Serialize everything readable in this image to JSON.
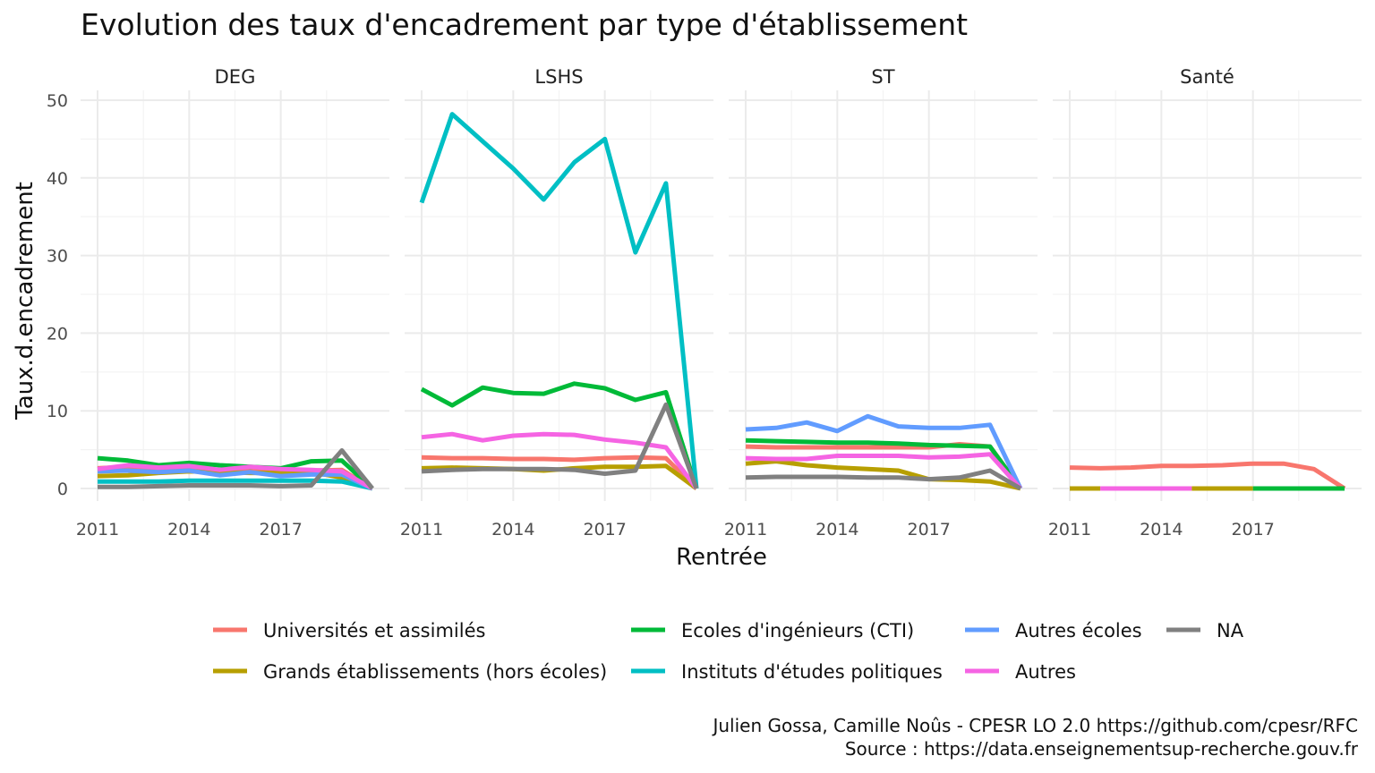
{
  "chart_data": {
    "type": "line",
    "title": "Evolution des taux d'encadrement par type d'établissement",
    "xlabel": "Rentrée",
    "ylabel": "Taux.d.encadrement",
    "x": [
      2011,
      2012,
      2013,
      2014,
      2015,
      2016,
      2017,
      2018,
      2019,
      2020
    ],
    "x_ticks": [
      "2011",
      "2014",
      "2017"
    ],
    "y_ticks": [
      "0",
      "10",
      "20",
      "30",
      "40",
      "50"
    ],
    "xlim": [
      2011,
      2020
    ],
    "ylim": [
      0,
      50
    ],
    "grid": true,
    "legend_position": "bottom",
    "legend": [
      {
        "name": "Universités et assimilés",
        "color": "#F8766D"
      },
      {
        "name": "Grands établissements (hors écoles)",
        "color": "#B79F00"
      },
      {
        "name": "Ecoles d'ingénieurs (CTI)",
        "color": "#00BA38"
      },
      {
        "name": "Instituts d'études politiques",
        "color": "#00BFC4"
      },
      {
        "name": "Autres écoles",
        "color": "#619CFF"
      },
      {
        "name": "Autres",
        "color": "#F564E3"
      },
      {
        "name": "NA",
        "color": "#808080"
      }
    ],
    "panels": [
      {
        "name": "DEG",
        "series": [
          {
            "name": "Universités et assimilés",
            "values": [
              2.6,
              2.8,
              2.5,
              2.4,
              2.2,
              2.3,
              2.4,
              2.3,
              2.4,
              0
            ]
          },
          {
            "name": "Grands établissements (hors écoles)",
            "values": [
              1.6,
              1.7,
              2.0,
              2.2,
              2.1,
              2.0,
              2.0,
              2.1,
              1.4,
              0
            ]
          },
          {
            "name": "Ecoles d'ingénieurs (CTI)",
            "values": [
              3.9,
              3.6,
              3.0,
              3.3,
              3.0,
              2.8,
              2.6,
              3.5,
              3.6,
              0
            ]
          },
          {
            "name": "Instituts d'études politiques",
            "values": [
              0.9,
              0.9,
              0.9,
              1.0,
              1.0,
              1.0,
              1.0,
              1.0,
              0.9,
              0
            ]
          },
          {
            "name": "Autres écoles",
            "values": [
              2.2,
              2.3,
              2.1,
              2.3,
              1.7,
              2.1,
              1.6,
              1.8,
              1.8,
              0
            ]
          },
          {
            "name": "Autres",
            "values": [
              2.5,
              3.0,
              2.7,
              2.9,
              2.4,
              2.8,
              2.5,
              2.4,
              2.2,
              0
            ]
          },
          {
            "name": "NA",
            "values": [
              0.2,
              0.2,
              0.3,
              0.4,
              0.4,
              0.4,
              0.3,
              0.4,
              4.9,
              0
            ]
          }
        ]
      },
      {
        "name": "LSHS",
        "series": [
          {
            "name": "Universités et assimilés",
            "values": [
              4.0,
              3.9,
              3.9,
              3.8,
              3.8,
              3.7,
              3.9,
              4.0,
              3.9,
              0
            ]
          },
          {
            "name": "Grands établissements (hors écoles)",
            "values": [
              2.6,
              2.7,
              2.6,
              2.5,
              2.3,
              2.6,
              2.8,
              2.8,
              2.9,
              0
            ]
          },
          {
            "name": "Ecoles d'ingénieurs (CTI)",
            "values": [
              12.8,
              10.7,
              13.0,
              12.3,
              12.2,
              13.5,
              12.9,
              11.4,
              12.4,
              0
            ]
          },
          {
            "name": "Instituts d'études politiques",
            "values": [
              36.8,
              48.2,
              44.7,
              41.2,
              37.2,
              42.0,
              45.0,
              30.4,
              39.3,
              0
            ]
          },
          {
            "name": "Autres",
            "values": [
              6.6,
              7.0,
              6.2,
              6.8,
              7.0,
              6.9,
              6.3,
              5.9,
              5.3,
              0
            ]
          },
          {
            "name": "NA",
            "values": [
              2.2,
              2.4,
              2.5,
              2.5,
              2.5,
              2.4,
              1.9,
              2.3,
              10.8,
              0
            ]
          }
        ]
      },
      {
        "name": "ST",
        "series": [
          {
            "name": "Universités et assimilés",
            "values": [
              5.4,
              5.3,
              5.3,
              5.3,
              5.3,
              5.3,
              5.3,
              5.7,
              5.4,
              0
            ]
          },
          {
            "name": "Grands établissements (hors écoles)",
            "values": [
              3.2,
              3.5,
              3.0,
              2.7,
              2.5,
              2.3,
              1.2,
              1.1,
              0.9,
              0
            ]
          },
          {
            "name": "Ecoles d'ingénieurs (CTI)",
            "values": [
              6.2,
              6.1,
              6.0,
              5.9,
              5.9,
              5.8,
              5.6,
              5.5,
              5.4,
              0
            ]
          },
          {
            "name": "Autres écoles",
            "values": [
              7.6,
              7.8,
              8.5,
              7.4,
              9.3,
              8.0,
              7.8,
              7.8,
              8.2,
              0
            ]
          },
          {
            "name": "Autres",
            "values": [
              3.9,
              3.8,
              3.8,
              4.2,
              4.2,
              4.2,
              4.0,
              4.1,
              4.4,
              0
            ]
          },
          {
            "name": "NA",
            "values": [
              1.4,
              1.5,
              1.5,
              1.5,
              1.4,
              1.4,
              1.2,
              1.4,
              2.3,
              0
            ]
          }
        ]
      },
      {
        "name": "Santé",
        "series": [
          {
            "name": "Universités et assimilés",
            "values": [
              2.7,
              2.6,
              2.7,
              2.9,
              2.9,
              3.0,
              3.2,
              3.2,
              2.5,
              0
            ]
          },
          {
            "name": "Grands établissements (hors écoles)",
            "x": [
              2011,
              2012
            ],
            "values": [
              0,
              0
            ]
          },
          {
            "name": "Autres",
            "x": [
              2012,
              2015
            ],
            "values": [
              0,
              0
            ]
          },
          {
            "name": "Grands établissements (hors écoles)",
            "x": [
              2015,
              2017
            ],
            "values": [
              0,
              0
            ]
          },
          {
            "name": "Ecoles d'ingénieurs (CTI)",
            "x": [
              2017,
              2020
            ],
            "values": [
              0,
              0
            ]
          }
        ]
      }
    ],
    "caption": [
      "Julien Gossa, Camille Noûs - CPESR LO 2.0 https://github.com/cpesr/RFC",
      "Source : https://data.enseignementsup-recherche.gouv.fr"
    ]
  }
}
